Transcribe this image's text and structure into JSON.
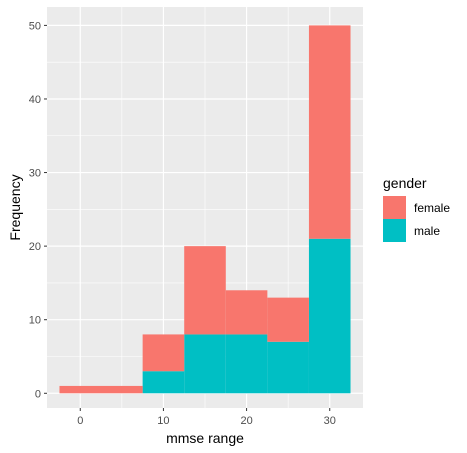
{
  "chart_data": {
    "type": "bar",
    "subtype": "stacked-histogram",
    "xlabel": "mmse range",
    "ylabel": "Frequency",
    "xlim": [
      -4,
      34
    ],
    "ylim": [
      -2,
      52.5
    ],
    "x_ticks": [
      0,
      10,
      20,
      30
    ],
    "y_ticks": [
      0,
      10,
      20,
      30,
      40,
      50
    ],
    "bins": [
      {
        "start": -2.5,
        "end": 7.5
      },
      {
        "start": 7.5,
        "end": 12.5
      },
      {
        "start": 12.5,
        "end": 17.5
      },
      {
        "start": 17.5,
        "end": 22.5
      },
      {
        "start": 22.5,
        "end": 27.5
      },
      {
        "start": 27.5,
        "end": 32.5
      }
    ],
    "series": [
      {
        "name": "male",
        "color": "#00BFC4",
        "values": [
          0,
          3,
          8,
          8,
          7,
          21
        ]
      },
      {
        "name": "female",
        "color": "#F8766D",
        "values": [
          1,
          5,
          12,
          6,
          6,
          29
        ]
      }
    ],
    "totals": [
      1,
      8,
      20,
      14,
      13,
      50
    ],
    "legend": {
      "title": "gender",
      "position": "right",
      "entries": [
        {
          "label": "female",
          "color": "#F8766D"
        },
        {
          "label": "male",
          "color": "#00BFC4"
        }
      ]
    },
    "grid": true,
    "panel_background": "#EBEBEB"
  }
}
